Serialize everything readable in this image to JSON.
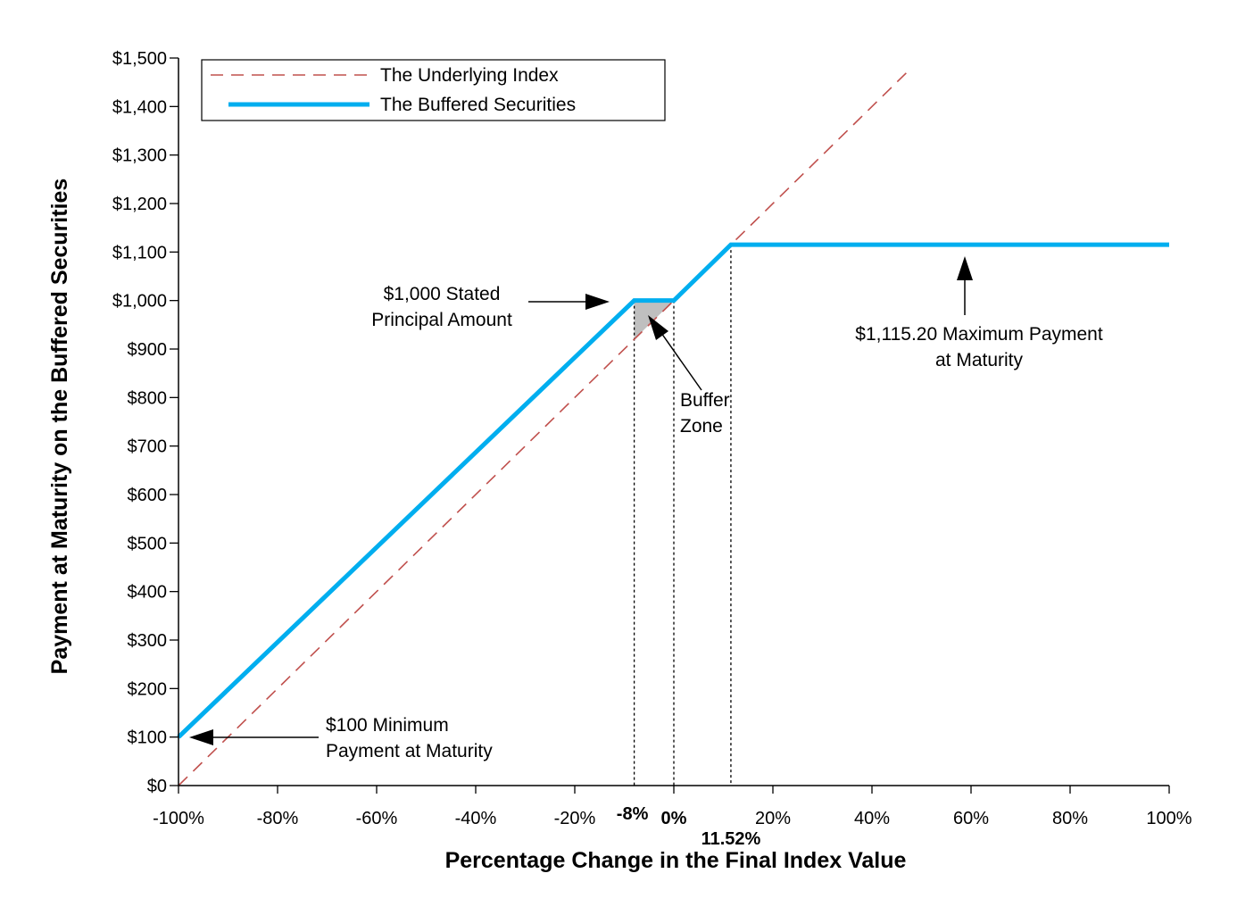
{
  "chart_data": {
    "type": "line",
    "xlabel": "Percentage Change in the Final Index Value",
    "ylabel": "Payment at Maturity on the Buffered Securities",
    "xlim": [
      -100,
      100
    ],
    "ylim": [
      0,
      1500
    ],
    "x_ticks": [
      -100,
      -80,
      -60,
      -40,
      -20,
      0,
      20,
      40,
      60,
      80,
      100
    ],
    "x_tick_labels": [
      "-100%",
      "-80%",
      "-60%",
      "-40%",
      "-20%",
      "0%",
      "20%",
      "40%",
      "60%",
      "80%",
      "100%"
    ],
    "y_ticks": [
      0,
      100,
      200,
      300,
      400,
      500,
      600,
      700,
      800,
      900,
      1000,
      1100,
      1200,
      1300,
      1400,
      1500
    ],
    "y_tick_labels": [
      "$0",
      "$100",
      "$200",
      "$300",
      "$400",
      "$500",
      "$600",
      "$700",
      "$800",
      "$900",
      "$1,000",
      "$1,100",
      "$1,200",
      "$1,300",
      "$1,400",
      "$1,500"
    ],
    "special_x_ticks": [
      {
        "x": -8,
        "label": "-8%"
      },
      {
        "x": 0,
        "label": "0%"
      },
      {
        "x": 11.52,
        "label": "11.52%"
      }
    ],
    "series": [
      {
        "name": "The Underlying Index",
        "style": "dashed",
        "color": "#c0504d",
        "x": [
          -100,
          47.5
        ],
        "y": [
          0,
          1475
        ]
      },
      {
        "name": "The Buffered Securities",
        "style": "solid",
        "color": "#00aeef",
        "x": [
          -100,
          -8,
          0,
          11.52,
          100
        ],
        "y": [
          100,
          1000,
          1000,
          1115.2,
          1115.2
        ]
      }
    ],
    "legend": {
      "placement": "top-left",
      "entries": [
        "The Underlying Index",
        "The Buffered Securities"
      ]
    },
    "annotations": {
      "stated_principal": {
        "lines": [
          "$1,000 Stated",
          "Principal Amount"
        ],
        "x": -8,
        "y": 1000
      },
      "buffer_zone": {
        "lines": [
          "Buffer",
          "Zone"
        ],
        "x": -4,
        "y": 950
      },
      "max_payment": {
        "lines": [
          "$1,115.20 Maximum Payment",
          "at Maturity"
        ],
        "x": 60,
        "y": 1115.2
      },
      "min_payment": {
        "lines": [
          "$100 Minimum",
          "Payment at Maturity"
        ],
        "x": -100,
        "y": 100
      }
    },
    "shaded_region": {
      "color": "#bfbfbf",
      "points": [
        [
          -8,
          1000
        ],
        [
          0,
          1000
        ],
        [
          -8,
          920
        ]
      ]
    },
    "grid": false
  }
}
